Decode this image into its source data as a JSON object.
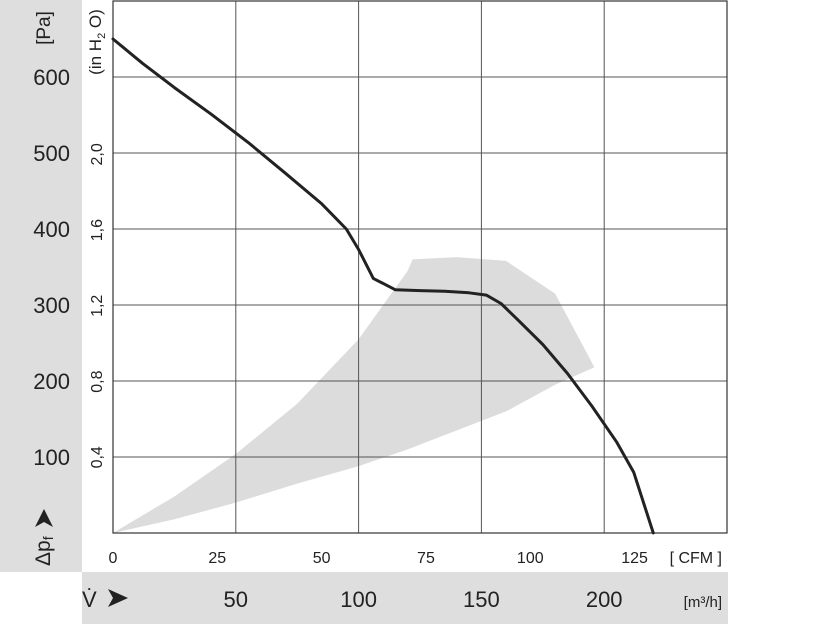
{
  "chart_data": {
    "type": "line",
    "y_unit_label": "[Pa]",
    "y2_unit_label": "(in H",
    "y2_unit_sub": "2",
    "y2_unit_tail": " O)",
    "y_axis_symbol": "Δp",
    "y_axis_symbol_sub": "f",
    "x_axis_symbol": "V̇",
    "x_unit_top": "[ CFM ]",
    "x_unit_bottom": "[m³/h]",
    "y_pa_ticks": [
      "100",
      "200",
      "300",
      "400",
      "500",
      "600"
    ],
    "y_inh2o_ticks": [
      "0,4",
      "0,8",
      "1,2",
      "1,6",
      "2,0"
    ],
    "x_cfm_ticks": [
      "0",
      "25",
      "50",
      "75",
      "100",
      "125"
    ],
    "x_m3h_ticks": [
      "50",
      "100",
      "150",
      "200"
    ],
    "ylim_pa": [
      0,
      700
    ],
    "xlim_m3h": [
      0,
      250
    ],
    "grid": true,
    "colors": {
      "curve": "#222222",
      "region": "#dcdcdc",
      "band": "#dedede",
      "grid": "#555555"
    },
    "series": [
      {
        "x_m3h": [
          0,
          12,
          25,
          40,
          55,
          70,
          85,
          95,
          100,
          106,
          115,
          125,
          135,
          145,
          152,
          158,
          165,
          175,
          185,
          195,
          205,
          212,
          220
        ],
        "y_pa": [
          650,
          618,
          586,
          551,
          514,
          474,
          433,
          400,
          373,
          335,
          320,
          319,
          318,
          316,
          313,
          302,
          280,
          248,
          210,
          167,
          120,
          80,
          0
        ]
      }
    ],
    "operating_region": {
      "upper_x_m3h": [
        0,
        25,
        50,
        75,
        100,
        120,
        122,
        140,
        160,
        180,
        196
      ],
      "upper_y_pa": [
        0,
        48,
        104,
        170,
        255,
        345,
        360,
        363,
        358,
        315,
        218
      ],
      "lower_x_m3h": [
        196,
        180,
        160,
        140,
        120,
        100,
        75,
        50,
        25,
        0
      ],
      "lower_y_pa": [
        218,
        195,
        160,
        135,
        110,
        88,
        65,
        40,
        18,
        0
      ]
    }
  }
}
